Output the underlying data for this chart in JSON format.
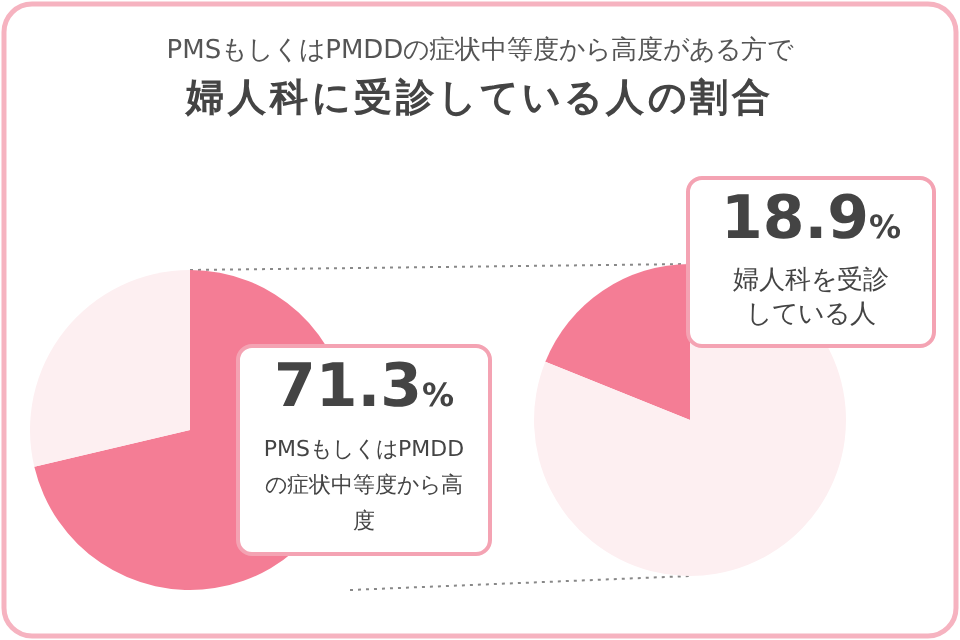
{
  "chart_data": [
    {
      "type": "pie",
      "subtitle": "PMSもしくはPMDDの症状中等度から高度がある方で",
      "title": "婦人科に受診している人の割合",
      "categories": [
        "PMSもしくはPMDDの症状中等度から高度",
        null
      ],
      "values": [
        71.3,
        28.7
      ],
      "value_labels": [
        "71.3%",
        null
      ],
      "colors": [
        "#f47d95",
        "#fdeff1"
      ]
    },
    {
      "type": "pie",
      "categories": [
        "婦人科を受診している人",
        null
      ],
      "values": [
        18.9,
        81.1
      ],
      "value_labels": [
        "18.9%",
        null
      ],
      "colors": [
        "#f47d95",
        "#fdeff1"
      ]
    }
  ]
}
